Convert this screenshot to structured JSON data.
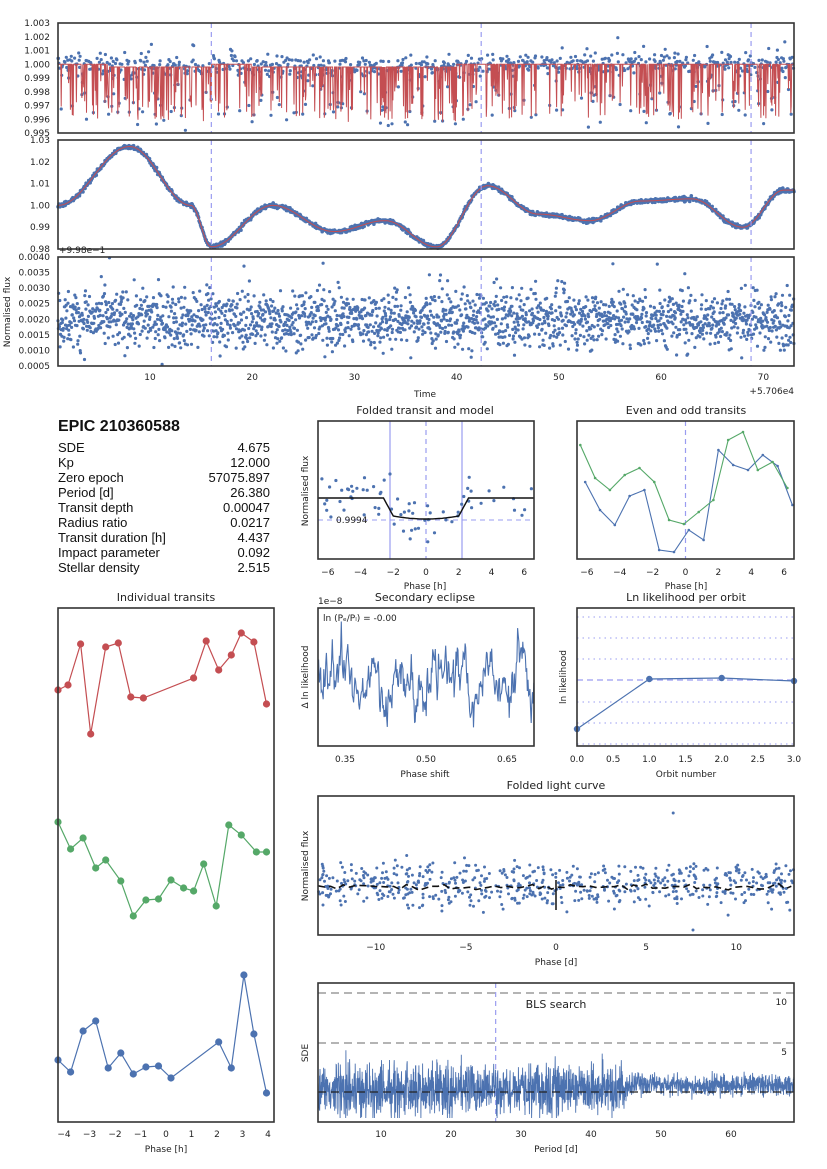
{
  "stats": {
    "title": "EPIC 210360588",
    "rows": [
      {
        "label": "SDE",
        "value": "4.675"
      },
      {
        "label": "Kp",
        "value": "12.000"
      },
      {
        "label": "Zero epoch",
        "value": "57075.897"
      },
      {
        "label": "Period [d]",
        "value": "26.380"
      },
      {
        "label": "Transit depth",
        "value": "0.00047"
      },
      {
        "label": "Radius ratio",
        "value": "0.0217"
      },
      {
        "label": "Transit duration [h]",
        "value": "4.437"
      },
      {
        "label": "Impact parameter",
        "value": "0.092"
      },
      {
        "label": "Stellar density",
        "value": "2.515"
      }
    ]
  },
  "colors": {
    "blue": "#4c72b0",
    "red": "#c44e52",
    "green": "#55a868",
    "transit": "#9a9cf0"
  },
  "chart_data": [
    {
      "type": "scatter",
      "id": "lc_raw",
      "ylim": [
        0.995,
        1.003
      ],
      "yticks": [
        "1.003",
        "1.002",
        "1.001",
        "1.000",
        "0.999",
        "0.998",
        "0.997",
        "0.996",
        "0.995"
      ],
      "transit_times": [
        16,
        42.4,
        68.8
      ],
      "series": [
        {
          "values": "flux with model"
        }
      ]
    },
    {
      "type": "line",
      "id": "lc_trend",
      "ylim": [
        0.98,
        1.03
      ],
      "yticks": [
        "1.03",
        "1.02",
        "1.01",
        "1.00",
        "0.99",
        "0.98"
      ],
      "x": [
        1,
        8,
        14,
        16,
        22,
        28,
        33,
        38,
        43,
        48,
        53,
        58,
        63,
        68,
        72
      ],
      "y": [
        1.0,
        1.027,
        1.0,
        0.981,
        1.0,
        0.988,
        0.993,
        0.981,
        1.009,
        0.996,
        0.993,
        1.002,
        1.003,
        0.99,
        1.007
      ]
    },
    {
      "type": "scatter",
      "id": "lc_detrended",
      "offset_label": "+9.98e−1",
      "ylabel": "Normalised flux",
      "xlabel": "Time",
      "x_offset_label": "+5.706e4",
      "ylim": [
        0.0005,
        0.004
      ],
      "yticks": [
        "0.0040",
        "0.0035",
        "0.0030",
        "0.0025",
        "0.0020",
        "0.0015",
        "0.0010",
        "0.0005"
      ],
      "xticks": [
        "10",
        "20",
        "30",
        "40",
        "50",
        "60",
        "70"
      ]
    },
    {
      "type": "scatter",
      "id": "folded_transit",
      "title": "Folded transit and model",
      "xlabel": "Phase [h]",
      "ylabel": "Normalised flux",
      "annotation": "0.9994",
      "xticks": [
        "−6",
        "−4",
        "−2",
        "0",
        "2",
        "4",
        "6"
      ]
    },
    {
      "type": "line",
      "id": "even_odd",
      "title": "Even and odd transits",
      "xlabel": "Phase [h]",
      "xticks": [
        "−6",
        "−4",
        "−2",
        "0",
        "2",
        "4",
        "6"
      ]
    },
    {
      "type": "line",
      "id": "individual",
      "title": "Individual transits",
      "xlabel": "Phase [h]",
      "xticks": [
        "−4",
        "−3",
        "−2",
        "−1",
        "0",
        "1",
        "2",
        "3",
        "4"
      ]
    },
    {
      "type": "line",
      "id": "secondary",
      "title": "Secondary eclipse",
      "xlabel": "Phase shift",
      "ylabel": "Δ ln likelihood",
      "offset_label": "1e−8",
      "annotation": "ln (Pₑ/Pₗ) = -0.00",
      "xticks": [
        "0.35",
        "0.50",
        "0.65"
      ]
    },
    {
      "type": "line",
      "id": "lnlike_orbit",
      "title": "Ln likelihood per orbit",
      "xlabel": "Orbit number",
      "ylabel": "ln likelihood",
      "x": [
        0,
        1,
        2,
        3
      ],
      "y": [
        -2.2,
        0.0,
        0.05,
        -0.05
      ],
      "xticks": [
        "0.0",
        "0.5",
        "1.0",
        "1.5",
        "2.0",
        "2.5",
        "3.0"
      ]
    },
    {
      "type": "scatter",
      "id": "folded_lc",
      "title": "Folded light curve",
      "xlabel": "Phase [d]",
      "ylabel": "Normalised flux",
      "xticks": [
        "−10",
        "−5",
        "0",
        "5",
        "10"
      ]
    },
    {
      "type": "line",
      "id": "bls",
      "title": "BLS search",
      "xlabel": "Period [d]",
      "ylabel": "SDE",
      "period_marker": 26.38,
      "level_labels": [
        "10",
        "5"
      ],
      "xticks": [
        "10",
        "20",
        "30",
        "40",
        "50",
        "60"
      ]
    }
  ]
}
